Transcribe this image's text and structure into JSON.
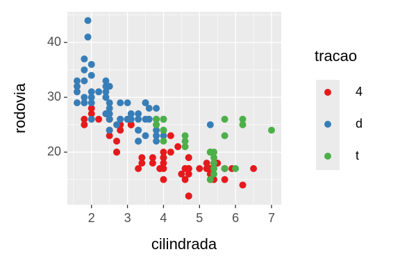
{
  "chart_data": {
    "type": "scatter",
    "x_label": "cilindrada",
    "y_label": "rodovia",
    "legend_title": "tracao",
    "legend_position": "right",
    "xlim": [
      1.33,
      7.27
    ],
    "ylim": [
      10.4,
      45.6
    ],
    "xticks": [
      2,
      3,
      4,
      5,
      6,
      7
    ],
    "yticks": [
      20,
      30,
      40
    ],
    "x_minor_ticks": [
      1.5,
      2.5,
      3.5,
      4.5,
      5.5,
      6.5
    ],
    "y_minor_ticks": [
      15,
      25,
      35,
      45
    ],
    "grid": true,
    "series": [
      {
        "name": "4",
        "color": "#e41a1c",
        "x": [
          1.8,
          1.8,
          2,
          2,
          2.8,
          2.8,
          3.1,
          3.1,
          2.8,
          3.1,
          4.2,
          4.2,
          5.3,
          5.3,
          5.7,
          6.5,
          3.7,
          3.7,
          3.9,
          3.9,
          4.7,
          4.7,
          5.2,
          5.2,
          5.7,
          5.9,
          4.7,
          4.7,
          4.7,
          4.7,
          5.2,
          5.7,
          4,
          4,
          4,
          4.6,
          5,
          4.6,
          5.4,
          4.7,
          5.5,
          4,
          4.6,
          5.4,
          3.3,
          3.4,
          3.4,
          4.7,
          6.2,
          5.3,
          5.3,
          2.7,
          2.7,
          2.7,
          4,
          2.5,
          2.5,
          2.2,
          2.5,
          4,
          4.5,
          4.4,
          2.5
        ],
        "y": [
          26,
          25,
          28,
          27,
          25,
          25,
          25,
          25,
          24,
          25,
          23,
          20,
          15,
          20,
          17,
          17,
          19,
          18,
          17,
          17,
          19,
          19,
          17,
          17,
          15,
          17,
          17,
          12,
          17,
          16,
          18,
          17,
          17,
          19,
          20,
          17,
          17,
          17,
          18,
          12,
          18,
          19,
          15,
          15,
          17,
          19,
          18,
          17,
          14,
          17,
          16,
          20,
          20,
          22,
          18,
          26,
          26,
          26,
          24,
          15,
          16,
          21,
          23
        ]
      },
      {
        "name": "d",
        "color": "#377eb8",
        "x": [
          1.8,
          1.8,
          2,
          2,
          2.8,
          2.8,
          3.1,
          2.4,
          2.4,
          3.1,
          3.5,
          3.6,
          3.8,
          3.8,
          4,
          3.3,
          3.3,
          3.3,
          3.3,
          3.8,
          3.8,
          4,
          1.8,
          1.8,
          1.8,
          1.8,
          1.6,
          1.6,
          1.6,
          1.6,
          2,
          2,
          2.4,
          2.4,
          3,
          3.5,
          2.5,
          2.5,
          2,
          2,
          2.4,
          2.4,
          2.4,
          2.5,
          3.3,
          3.6,
          3.1,
          2.5,
          2.5,
          1.9,
          1.9,
          2.8,
          3,
          3,
          3.5,
          3.5,
          2.2,
          3.3,
          5.3,
          2.7,
          4,
          3.8,
          2.5,
          3.8
        ],
        "y": [
          29,
          29,
          31,
          30,
          26,
          26,
          27,
          30,
          33,
          26,
          29,
          26,
          26,
          28,
          26,
          24,
          24,
          22,
          22,
          24,
          22,
          24,
          30,
          33,
          35,
          37,
          32,
          29,
          31,
          33,
          36,
          34,
          27,
          30,
          26,
          29,
          26,
          27,
          29,
          26,
          31,
          32,
          27,
          24,
          26,
          28,
          26,
          29,
          32,
          44,
          41,
          29,
          26,
          29,
          23,
          26,
          31,
          27,
          25,
          25,
          23,
          23,
          28,
          25
        ]
      },
      {
        "name": "t",
        "color": "#4daf4a",
        "x": [
          5.7,
          5.7,
          6.2,
          6.2,
          7,
          5.3,
          5.3,
          5.3,
          5.7,
          6,
          5.4,
          5.4,
          5.4,
          4,
          4,
          4.6,
          4.6,
          5.4,
          5.4,
          4.6,
          5.4,
          3.8,
          3.8,
          4
        ],
        "y": [
          26,
          23,
          26,
          25,
          24,
          20,
          15,
          20,
          17,
          17,
          17,
          17,
          18,
          24,
          22,
          23,
          22,
          20,
          16,
          21,
          19,
          26,
          25,
          26
        ]
      }
    ]
  }
}
